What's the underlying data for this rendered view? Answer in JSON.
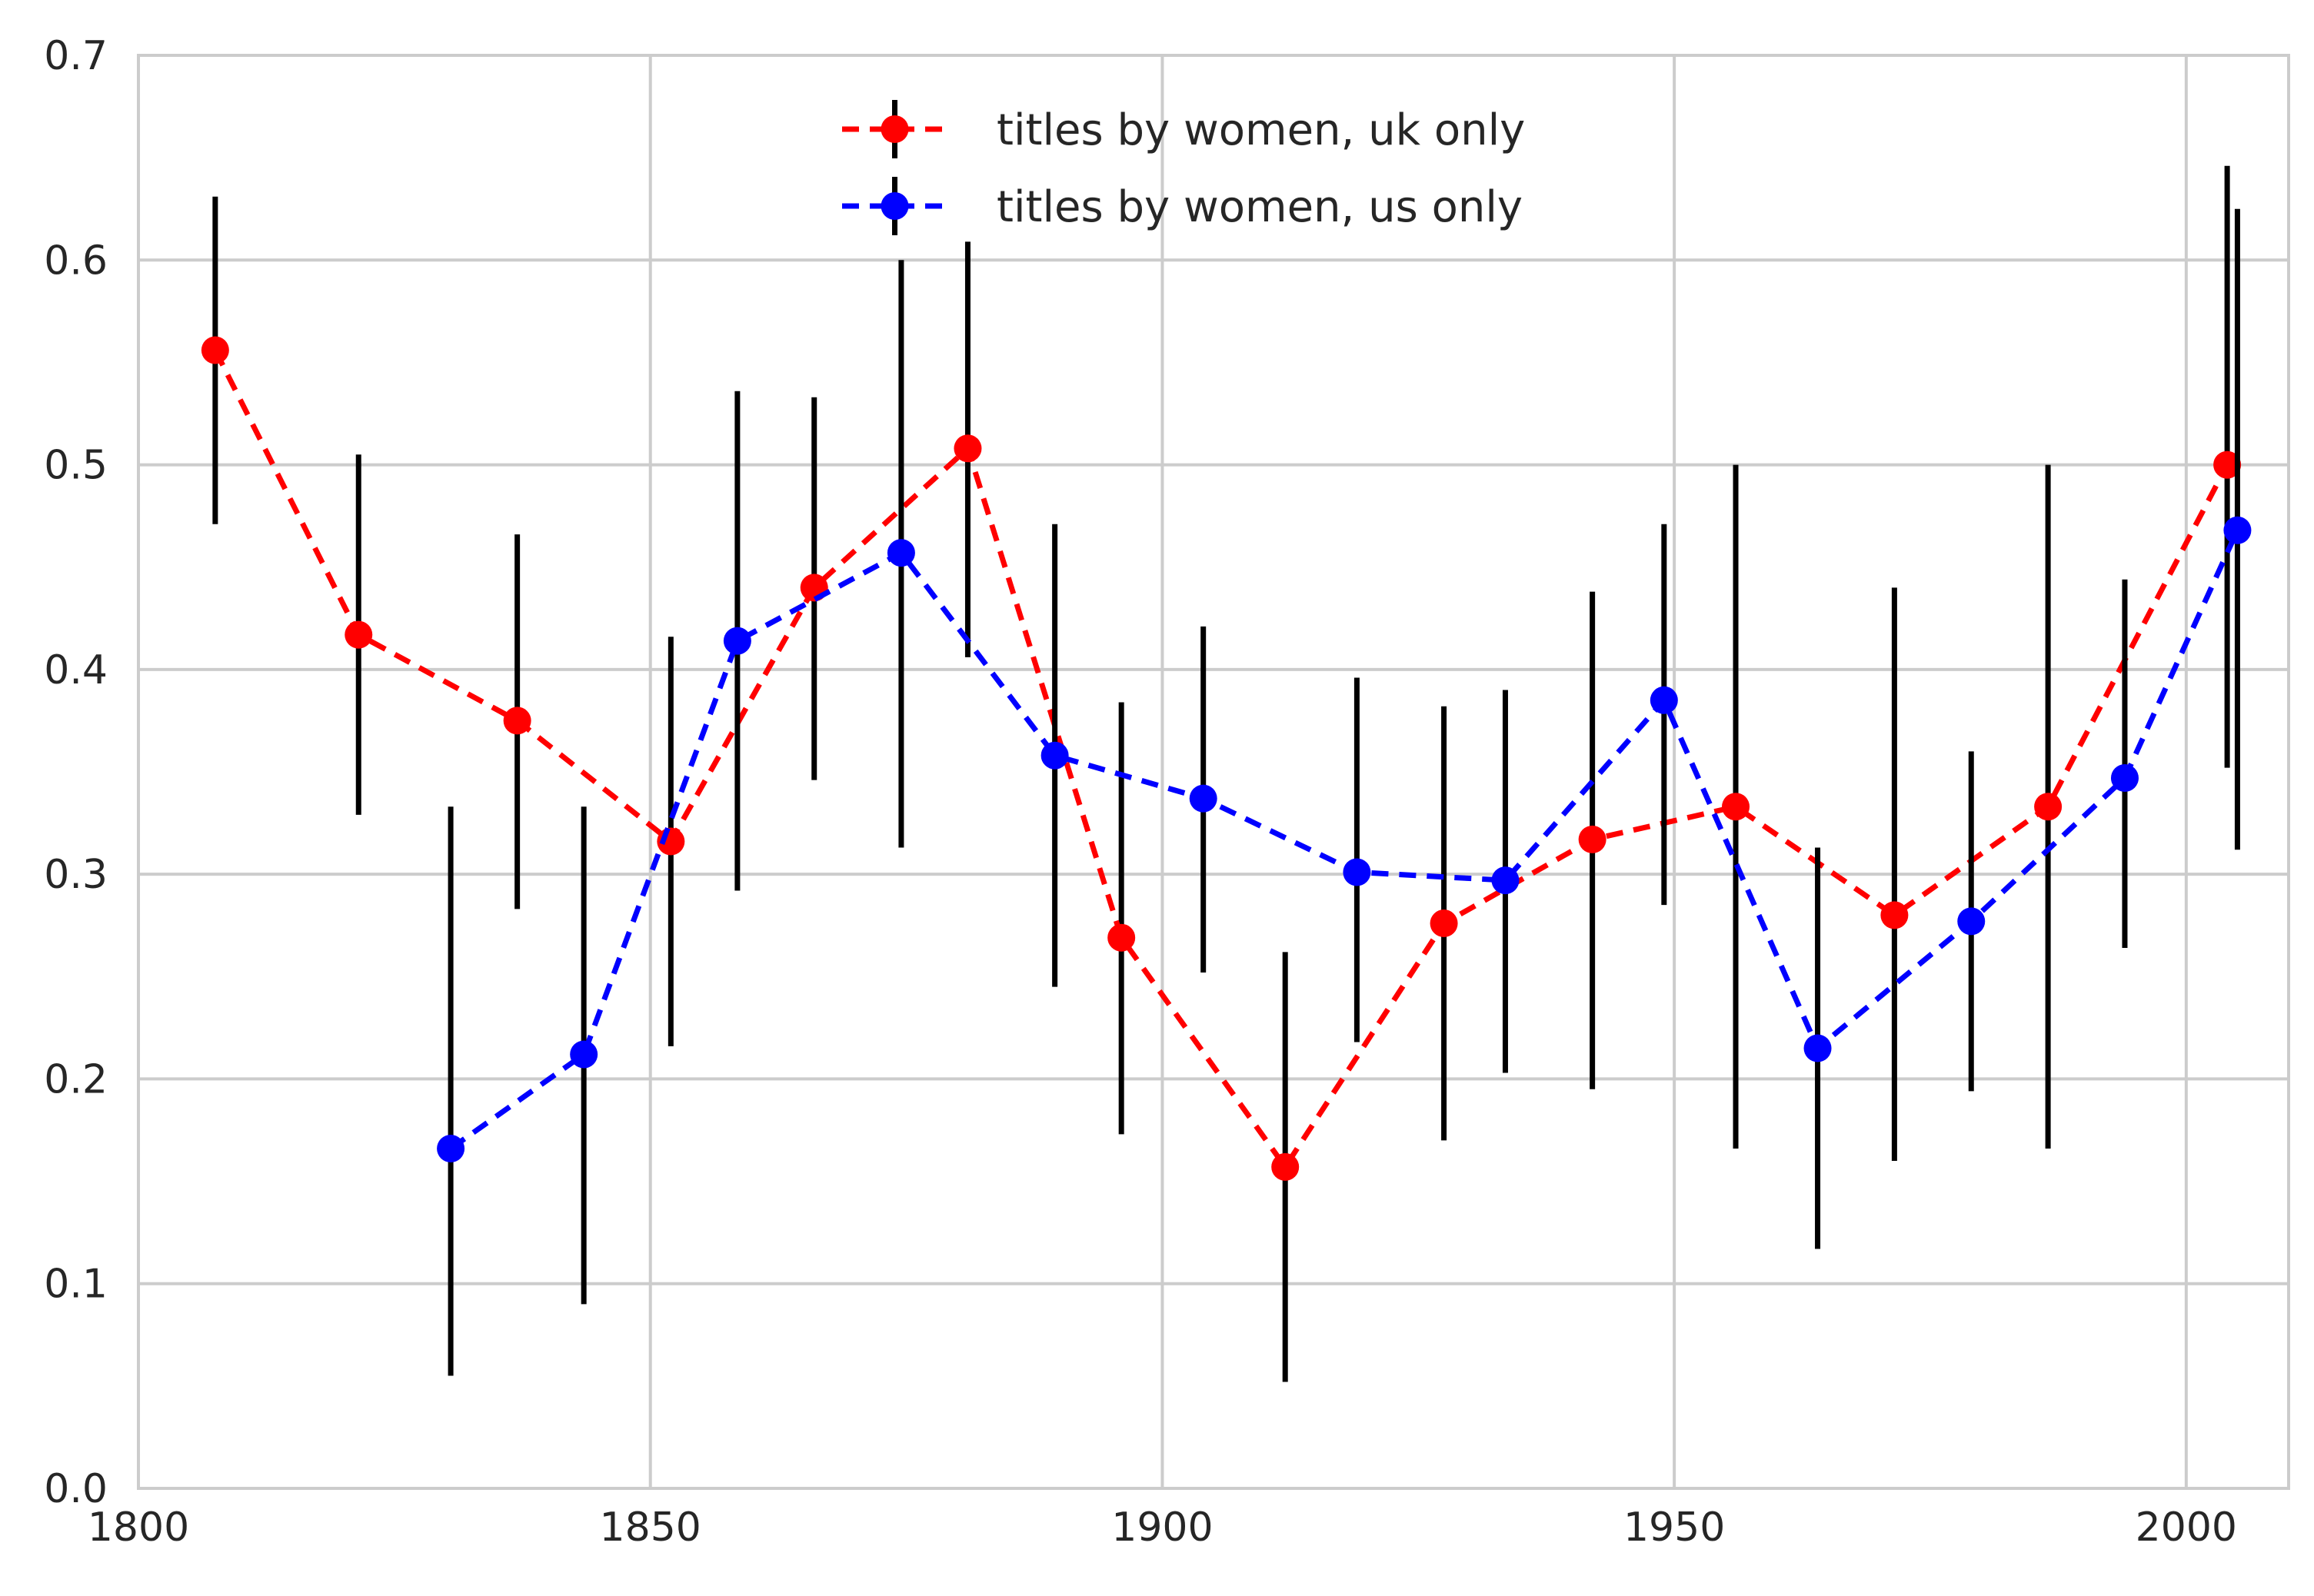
{
  "chart_data": {
    "type": "line",
    "title": "",
    "xlabel": "",
    "ylabel": "",
    "xlim": [
      1800,
      2010
    ],
    "ylim": [
      0,
      0.7
    ],
    "x_ticks": [
      1800,
      1850,
      1900,
      1950,
      2000
    ],
    "x_tick_labels": [
      "1800",
      "1850",
      "1900",
      "1950",
      "2000"
    ],
    "y_ticks": [
      0,
      0.1,
      0.2,
      0.3,
      0.4,
      0.5,
      0.6,
      0.7
    ],
    "y_tick_labels": [
      "0.0",
      "0.1",
      "0.2",
      "0.3",
      "0.4",
      "0.5",
      "0.6",
      "0.7"
    ],
    "grid": true,
    "legend_position": "top-center",
    "error_bar_color": "#000000",
    "series": [
      {
        "name": "titles by women, uk only",
        "color": "#ff0000",
        "line_style": "dashed",
        "marker": "circle",
        "points": [
          {
            "x": 1807.5,
            "y": 0.556,
            "lo": 0.471,
            "hi": 0.631
          },
          {
            "x": 1821.5,
            "y": 0.417,
            "lo": 0.329,
            "hi": 0.505
          },
          {
            "x": 1837,
            "y": 0.375,
            "lo": 0.283,
            "hi": 0.466
          },
          {
            "x": 1852,
            "y": 0.316,
            "lo": 0.216,
            "hi": 0.416
          },
          {
            "x": 1866,
            "y": 0.44,
            "lo": 0.346,
            "hi": 0.533
          },
          {
            "x": 1881,
            "y": 0.508,
            "lo": 0.406,
            "hi": 0.609
          },
          {
            "x": 1896,
            "y": 0.269,
            "lo": 0.173,
            "hi": 0.384
          },
          {
            "x": 1912,
            "y": 0.157,
            "lo": 0.052,
            "hi": 0.262
          },
          {
            "x": 1927.5,
            "y": 0.276,
            "lo": 0.17,
            "hi": 0.382
          },
          {
            "x": 1942,
            "y": 0.317,
            "lo": 0.195,
            "hi": 0.438
          },
          {
            "x": 1956,
            "y": 0.333,
            "lo": 0.166,
            "hi": 0.5
          },
          {
            "x": 1971.5,
            "y": 0.28,
            "lo": 0.16,
            "hi": 0.44
          },
          {
            "x": 1986.5,
            "y": 0.333,
            "lo": 0.166,
            "hi": 0.5
          },
          {
            "x": 2004,
            "y": 0.5,
            "lo": 0.352,
            "hi": 0.646
          }
        ]
      },
      {
        "name": "titles by women, us only",
        "color": "#0000ff",
        "line_style": "dashed",
        "marker": "circle",
        "points": [
          {
            "x": 1830.5,
            "y": 0.166,
            "lo": 0.055,
            "hi": 0.333
          },
          {
            "x": 1843.5,
            "y": 0.212,
            "lo": 0.09,
            "hi": 0.333
          },
          {
            "x": 1858.5,
            "y": 0.414,
            "lo": 0.292,
            "hi": 0.536
          },
          {
            "x": 1874.5,
            "y": 0.457,
            "lo": 0.313,
            "hi": 0.6
          },
          {
            "x": 1889.5,
            "y": 0.358,
            "lo": 0.245,
            "hi": 0.471
          },
          {
            "x": 1904,
            "y": 0.337,
            "lo": 0.252,
            "hi": 0.421
          },
          {
            "x": 1919,
            "y": 0.301,
            "lo": 0.218,
            "hi": 0.396
          },
          {
            "x": 1933.5,
            "y": 0.297,
            "lo": 0.203,
            "hi": 0.39
          },
          {
            "x": 1949,
            "y": 0.385,
            "lo": 0.285,
            "hi": 0.471
          },
          {
            "x": 1964,
            "y": 0.215,
            "lo": 0.117,
            "hi": 0.313
          },
          {
            "x": 1979,
            "y": 0.277,
            "lo": 0.194,
            "hi": 0.36
          },
          {
            "x": 1994,
            "y": 0.347,
            "lo": 0.264,
            "hi": 0.444
          },
          {
            "x": 2005,
            "y": 0.468,
            "lo": 0.312,
            "hi": 0.625
          }
        ]
      }
    ]
  }
}
